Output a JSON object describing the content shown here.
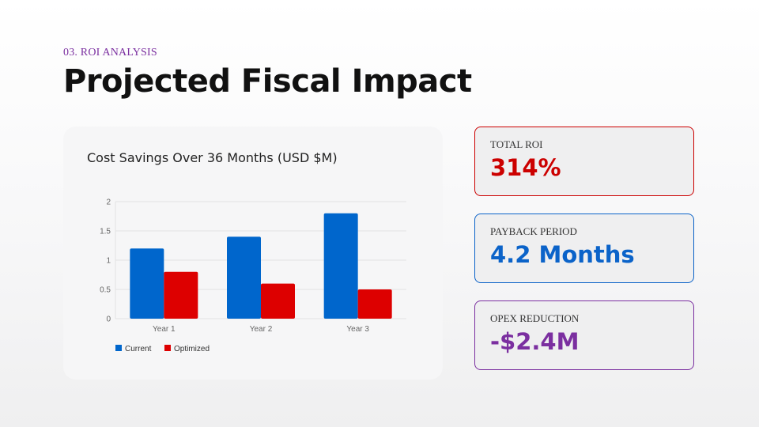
{
  "header": {
    "eyebrow": "03. ROI ANALYSIS",
    "title": "Projected Fiscal Impact"
  },
  "metrics": [
    {
      "label": "TOTAL ROI",
      "value": "314%",
      "color": "#cc0000"
    },
    {
      "label": "PAYBACK PERIOD",
      "value": "4.2 Months",
      "color": "#0b63c9"
    },
    {
      "label": "OPEX REDUCTION",
      "value": "-$2.4M",
      "color": "#7b2fa0"
    }
  ],
  "chart_data": {
    "type": "bar",
    "title": "Cost Savings Over 36 Months (USD $M)",
    "categories": [
      "Year 1",
      "Year 2",
      "Year 3"
    ],
    "series": [
      {
        "name": "Current",
        "values": [
          1.2,
          1.4,
          1.8
        ],
        "color": "#0066cc"
      },
      {
        "name": "Optimized",
        "values": [
          0.8,
          0.6,
          0.5
        ],
        "color": "#dd0000"
      }
    ],
    "yticks": [
      "0",
      "0.5",
      "1",
      "1.5",
      "2"
    ],
    "ylim": [
      0,
      2
    ],
    "grid": true,
    "legend_position": "bottom-left",
    "xlabel": "",
    "ylabel": ""
  }
}
